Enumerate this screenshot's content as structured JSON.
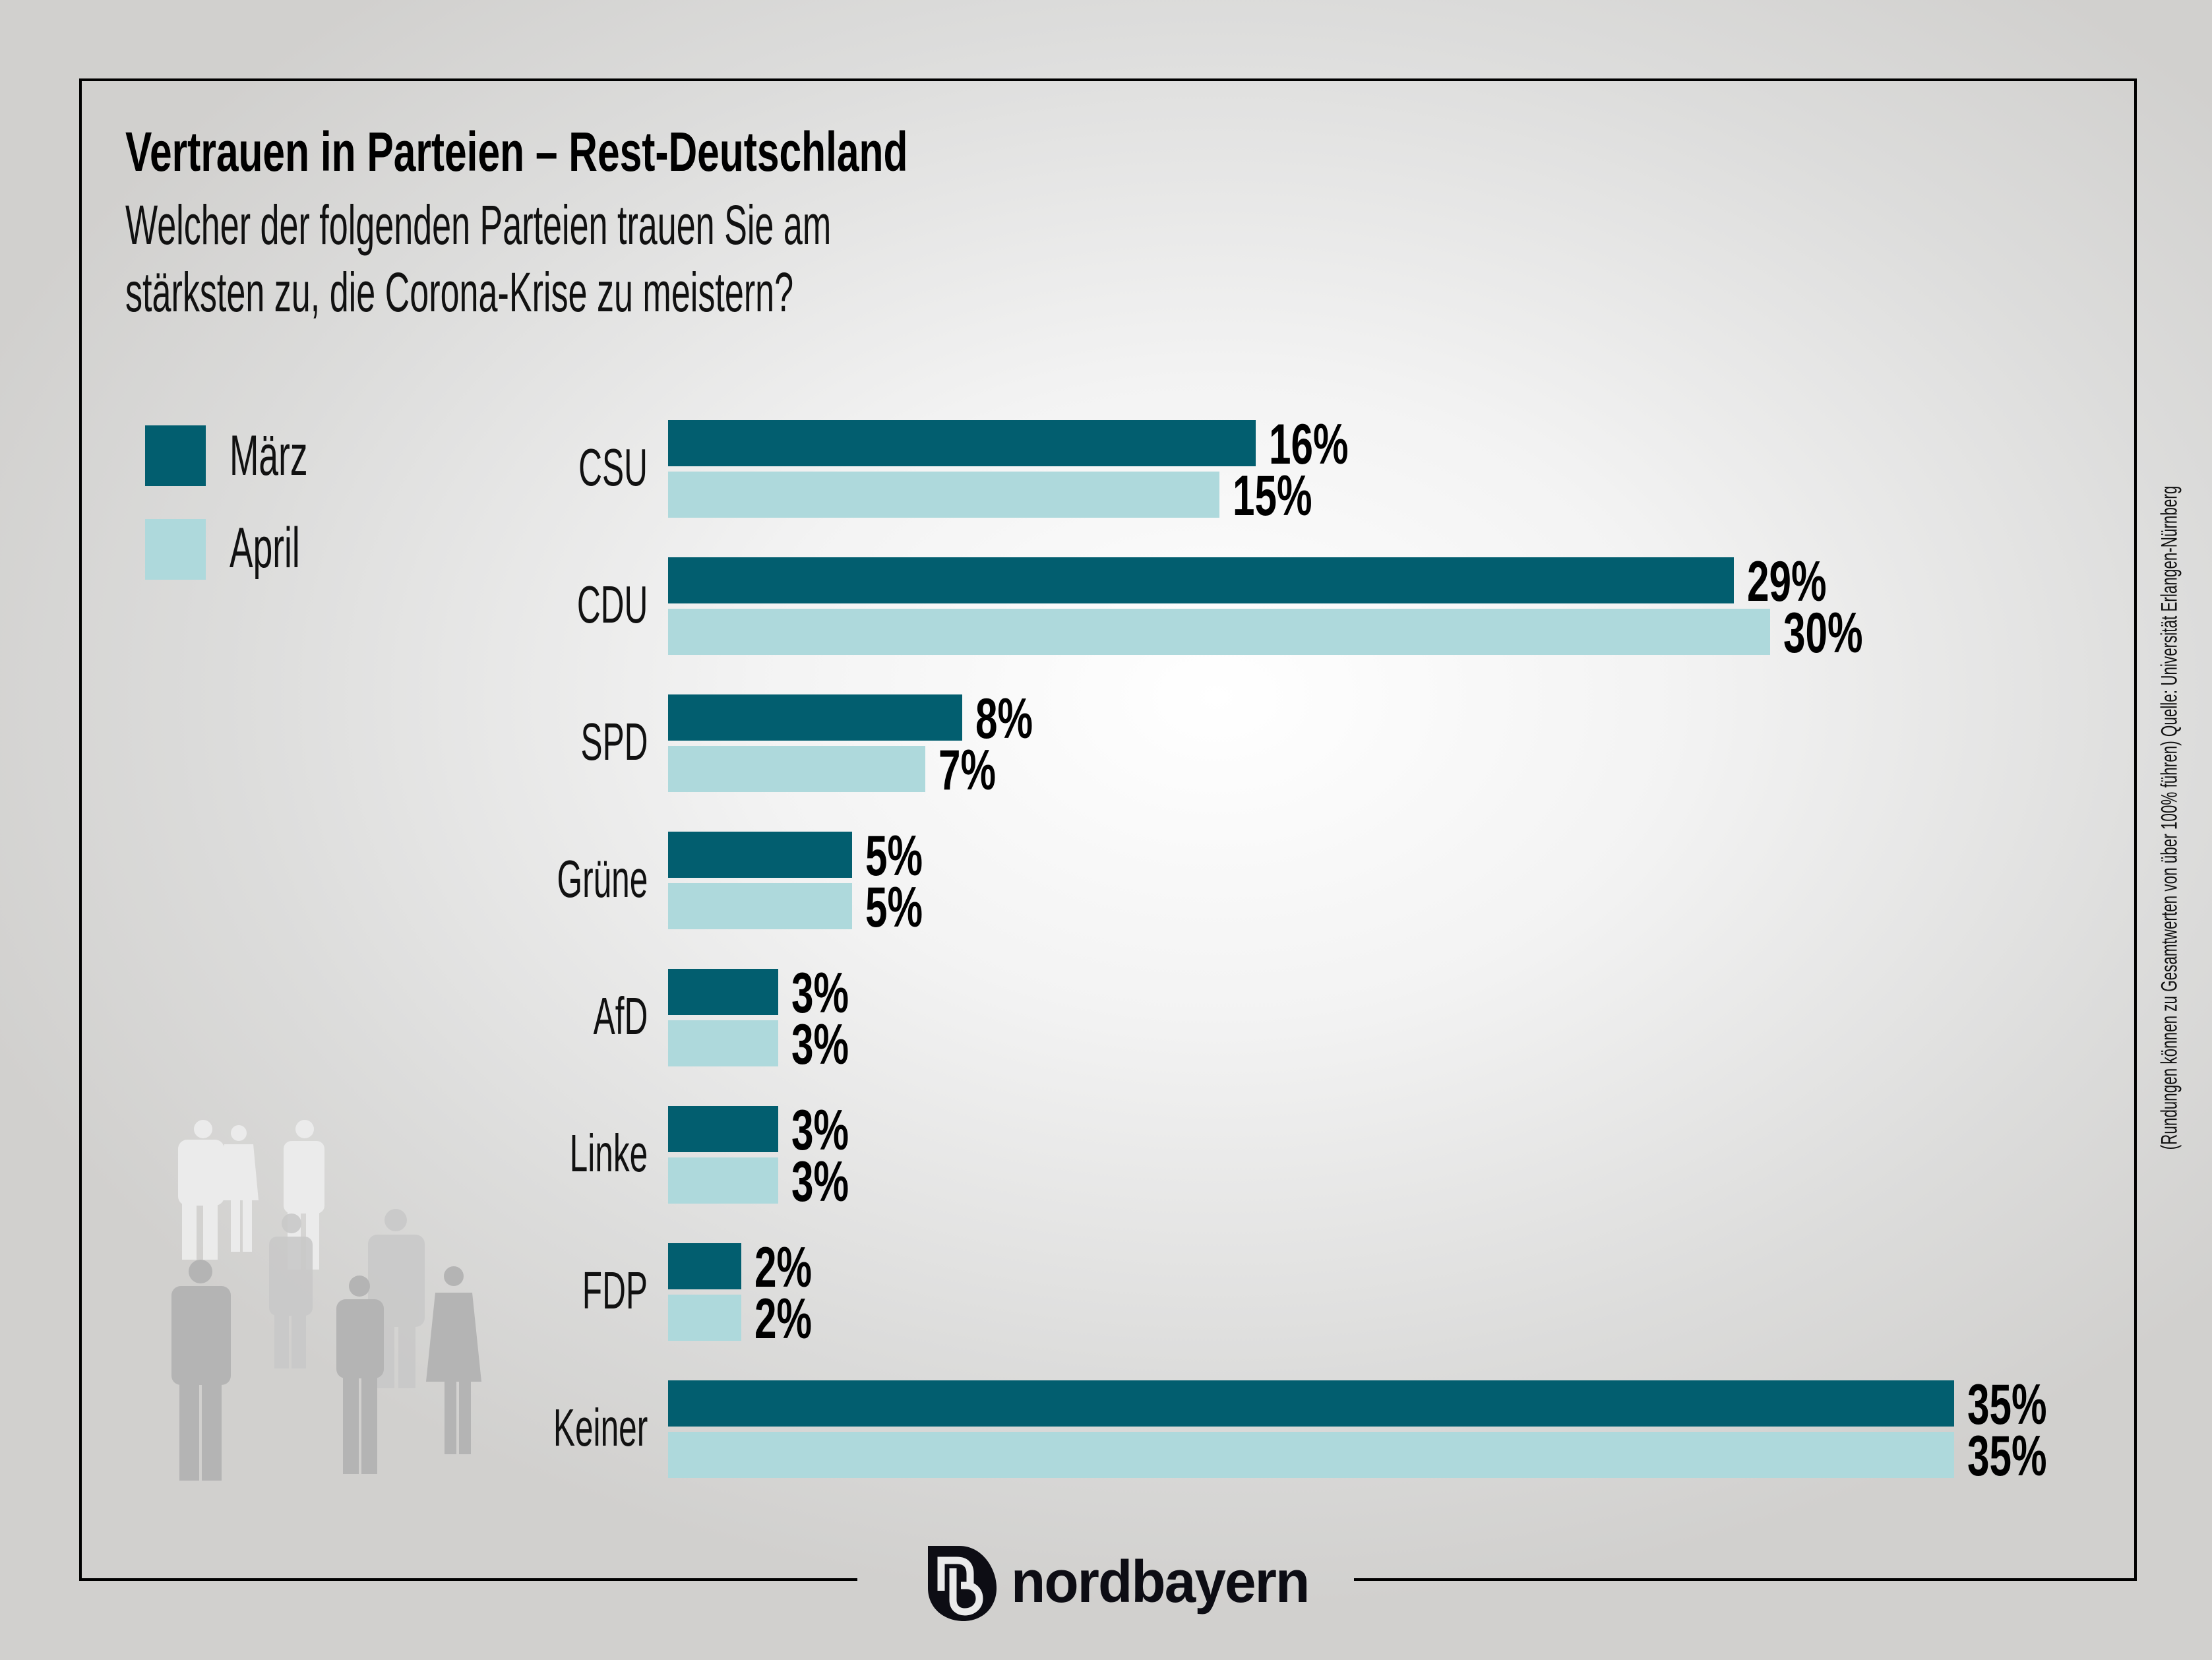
{
  "title": "Vertrauen in Parteien – Rest-Deutschland",
  "subtitle_lines": [
    "Welcher der folgenden Parteien trauen Sie am",
    "stärksten zu, die Corona-Krise zu meistern?"
  ],
  "side_note": "(Rundungen können zu Gesamtwerten von über 100% führen) Quelle: Universität Erlangen-Nürnberg",
  "logo_text": "nordbayern",
  "colors": {
    "maerz": "#025e6f",
    "april": "#aed9dc",
    "text": "#111111"
  },
  "chart_data": {
    "type": "bar",
    "orientation": "horizontal",
    "title": "Vertrauen in Parteien – Rest-Deutschland",
    "categories": [
      "CSU",
      "CDU",
      "SPD",
      "Grüne",
      "AfD",
      "Linke",
      "FDP",
      "Keiner"
    ],
    "series": [
      {
        "name": "März",
        "values": [
          16,
          29,
          8,
          5,
          3,
          3,
          2,
          35
        ],
        "labels": [
          "16%",
          "29%",
          "8%",
          "5%",
          "3%",
          "3%",
          "2%",
          "35%"
        ]
      },
      {
        "name": "April",
        "values": [
          15,
          30,
          7,
          5,
          3,
          3,
          2,
          35
        ],
        "labels": [
          "15%",
          "30%",
          "7%",
          "5%",
          "3%",
          "3%",
          "2%",
          "35%"
        ]
      }
    ],
    "unit": "%",
    "xlim": [
      0,
      35
    ],
    "legend_position": "top-left",
    "grid": false
  }
}
